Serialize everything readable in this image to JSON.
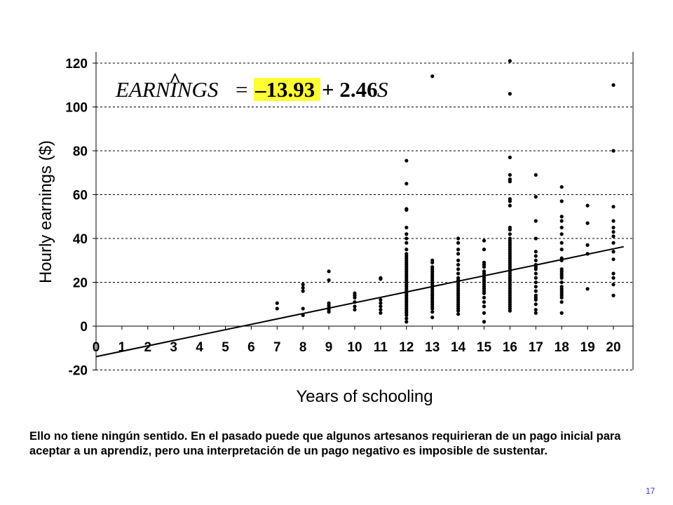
{
  "chart_data": {
    "type": "scatter",
    "xlabel": "Years of schooling",
    "ylabel": "Hourly earnings ($)",
    "xlim": [
      0,
      20.8
    ],
    "ylim": [
      -20,
      125
    ],
    "x_ticks": [
      "0",
      "1",
      "2",
      "3",
      "4",
      "5",
      "6",
      "7",
      "8",
      "9",
      "10",
      "11",
      "12",
      "13",
      "14",
      "15",
      "16",
      "17",
      "18",
      "19",
      "20"
    ],
    "y_ticks": [
      "120",
      "100",
      "80",
      "60",
      "40",
      "20",
      "0",
      "-20"
    ],
    "grid": "horizontal-dashed",
    "equation": {
      "lhs": "EARNINGS",
      "hat": "^",
      "equals": "=",
      "intercept": "–13.93",
      "slope_term": "+ 2.46",
      "variable": "S",
      "highlight_color": "#ffff33"
    },
    "regression_line": {
      "intercept": -13.93,
      "slope": 2.46,
      "x_range": [
        0,
        20.4
      ]
    },
    "points": [
      [
        7,
        8
      ],
      [
        7,
        10.5
      ],
      [
        8,
        5
      ],
      [
        8,
        8
      ],
      [
        8,
        16
      ],
      [
        8,
        17.5
      ],
      [
        8,
        19
      ],
      [
        9,
        6.5
      ],
      [
        9,
        7.5
      ],
      [
        9,
        8.5
      ],
      [
        9,
        9.5
      ],
      [
        9,
        10.5
      ],
      [
        9,
        21
      ],
      [
        9,
        25
      ],
      [
        10,
        7.5
      ],
      [
        10,
        9
      ],
      [
        10,
        11
      ],
      [
        10,
        13
      ],
      [
        10,
        14
      ],
      [
        10,
        15
      ],
      [
        11,
        6
      ],
      [
        11,
        7.5
      ],
      [
        11,
        9
      ],
      [
        11,
        10.5
      ],
      [
        11,
        12
      ],
      [
        11,
        21.5
      ],
      [
        11,
        22
      ],
      [
        12,
        2
      ],
      [
        12,
        3.5
      ],
      [
        12,
        5
      ],
      [
        12,
        6
      ],
      [
        12,
        7
      ],
      [
        12,
        8
      ],
      [
        12,
        9
      ],
      [
        12,
        10
      ],
      [
        12,
        11
      ],
      [
        12,
        12
      ],
      [
        12,
        13
      ],
      [
        12,
        14
      ],
      [
        12,
        15
      ],
      [
        12,
        16
      ],
      [
        12,
        17
      ],
      [
        12,
        18
      ],
      [
        12,
        19
      ],
      [
        12,
        20
      ],
      [
        12,
        21
      ],
      [
        12,
        22
      ],
      [
        12,
        23
      ],
      [
        12,
        24
      ],
      [
        12,
        25
      ],
      [
        12,
        26
      ],
      [
        12,
        27
      ],
      [
        12,
        28
      ],
      [
        12,
        29
      ],
      [
        12,
        30
      ],
      [
        12,
        31
      ],
      [
        12,
        32
      ],
      [
        12,
        33
      ],
      [
        12,
        35
      ],
      [
        12,
        38
      ],
      [
        12,
        40
      ],
      [
        12,
        42
      ],
      [
        12,
        45
      ],
      [
        12,
        53
      ],
      [
        12,
        53.5
      ],
      [
        12,
        65
      ],
      [
        12,
        75.5
      ],
      [
        13,
        4
      ],
      [
        13,
        6.5
      ],
      [
        13,
        8
      ],
      [
        13,
        9
      ],
      [
        13,
        10
      ],
      [
        13,
        11
      ],
      [
        13,
        12
      ],
      [
        13,
        13
      ],
      [
        13,
        14
      ],
      [
        13,
        15
      ],
      [
        13,
        16
      ],
      [
        13,
        17
      ],
      [
        13,
        18
      ],
      [
        13,
        19
      ],
      [
        13,
        20
      ],
      [
        13,
        21
      ],
      [
        13,
        22
      ],
      [
        13,
        23
      ],
      [
        13,
        24
      ],
      [
        13,
        25
      ],
      [
        13,
        26
      ],
      [
        13,
        27
      ],
      [
        13,
        29
      ],
      [
        13,
        30
      ],
      [
        13,
        114
      ],
      [
        14,
        5.5
      ],
      [
        14,
        7
      ],
      [
        14,
        8
      ],
      [
        14,
        9
      ],
      [
        14,
        10
      ],
      [
        14,
        11
      ],
      [
        14,
        12
      ],
      [
        14,
        13
      ],
      [
        14,
        14
      ],
      [
        14,
        15
      ],
      [
        14,
        16
      ],
      [
        14,
        17
      ],
      [
        14,
        18
      ],
      [
        14,
        19
      ],
      [
        14,
        20
      ],
      [
        14,
        21
      ],
      [
        14,
        22
      ],
      [
        14,
        24
      ],
      [
        14,
        26
      ],
      [
        14,
        28
      ],
      [
        14,
        30
      ],
      [
        14,
        33
      ],
      [
        14,
        35
      ],
      [
        14,
        38
      ],
      [
        14,
        40
      ],
      [
        15,
        2
      ],
      [
        15,
        6
      ],
      [
        15,
        9
      ],
      [
        15,
        11
      ],
      [
        15,
        13
      ],
      [
        15,
        15
      ],
      [
        15,
        16
      ],
      [
        15,
        17
      ],
      [
        15,
        18
      ],
      [
        15,
        19
      ],
      [
        15,
        20
      ],
      [
        15,
        21
      ],
      [
        15,
        22
      ],
      [
        15,
        23
      ],
      [
        15,
        24
      ],
      [
        15,
        25
      ],
      [
        15,
        27
      ],
      [
        15,
        28
      ],
      [
        15,
        29
      ],
      [
        15,
        35
      ],
      [
        15,
        39
      ],
      [
        16,
        7
      ],
      [
        16,
        8
      ],
      [
        16,
        9
      ],
      [
        16,
        10
      ],
      [
        16,
        11
      ],
      [
        16,
        12
      ],
      [
        16,
        13
      ],
      [
        16,
        14
      ],
      [
        16,
        15
      ],
      [
        16,
        16
      ],
      [
        16,
        17
      ],
      [
        16,
        18
      ],
      [
        16,
        19
      ],
      [
        16,
        20
      ],
      [
        16,
        21
      ],
      [
        16,
        22
      ],
      [
        16,
        23
      ],
      [
        16,
        24
      ],
      [
        16,
        25
      ],
      [
        16,
        26
      ],
      [
        16,
        27
      ],
      [
        16,
        28
      ],
      [
        16,
        29
      ],
      [
        16,
        30
      ],
      [
        16,
        31
      ],
      [
        16,
        32
      ],
      [
        16,
        33
      ],
      [
        16,
        34
      ],
      [
        16,
        35
      ],
      [
        16,
        36
      ],
      [
        16,
        37
      ],
      [
        16,
        38
      ],
      [
        16,
        39
      ],
      [
        16,
        40
      ],
      [
        16,
        42
      ],
      [
        16,
        44
      ],
      [
        16,
        45
      ],
      [
        16,
        55
      ],
      [
        16,
        57
      ],
      [
        16,
        58
      ],
      [
        16,
        66
      ],
      [
        16,
        67
      ],
      [
        16,
        69
      ],
      [
        16,
        77
      ],
      [
        16,
        106
      ],
      [
        16,
        121
      ],
      [
        17,
        6
      ],
      [
        17,
        7.5
      ],
      [
        17,
        10
      ],
      [
        17,
        12
      ],
      [
        17,
        13
      ],
      [
        17,
        14
      ],
      [
        17,
        16
      ],
      [
        17,
        18
      ],
      [
        17,
        20
      ],
      [
        17,
        22
      ],
      [
        17,
        24
      ],
      [
        17,
        26
      ],
      [
        17,
        27
      ],
      [
        17,
        28
      ],
      [
        17,
        30
      ],
      [
        17,
        32
      ],
      [
        17,
        34
      ],
      [
        17,
        40
      ],
      [
        17,
        48
      ],
      [
        17,
        59
      ],
      [
        17,
        69
      ],
      [
        18,
        6
      ],
      [
        18,
        11
      ],
      [
        18,
        13
      ],
      [
        18,
        14
      ],
      [
        18,
        15
      ],
      [
        18,
        16
      ],
      [
        18,
        17
      ],
      [
        18,
        18
      ],
      [
        18,
        20
      ],
      [
        18,
        22
      ],
      [
        18,
        23
      ],
      [
        18,
        24
      ],
      [
        18,
        25
      ],
      [
        18,
        26
      ],
      [
        18,
        30
      ],
      [
        18,
        31
      ],
      [
        18,
        35
      ],
      [
        18,
        38
      ],
      [
        18,
        42
      ],
      [
        18,
        45
      ],
      [
        18,
        48
      ],
      [
        18,
        50
      ],
      [
        18,
        57
      ],
      [
        18,
        63.5
      ],
      [
        19,
        17
      ],
      [
        19,
        33
      ],
      [
        19,
        37
      ],
      [
        19,
        47
      ],
      [
        19,
        55
      ],
      [
        20,
        14
      ],
      [
        20,
        19
      ],
      [
        20,
        22
      ],
      [
        20,
        24
      ],
      [
        20,
        30.5
      ],
      [
        20,
        34
      ],
      [
        20,
        38
      ],
      [
        20,
        41
      ],
      [
        20,
        43
      ],
      [
        20,
        45
      ],
      [
        20,
        48
      ],
      [
        20,
        54.5
      ],
      [
        20,
        80
      ],
      [
        20,
        110
      ]
    ]
  },
  "caption": "Ello no tiene ningún sentido. En el pasado puede que algunos artesanos requirieran de un pago inicial para aceptar a un aprendiz, pero una interpretación de un pago negativo es imposible de sustentar.",
  "page_number": "17"
}
